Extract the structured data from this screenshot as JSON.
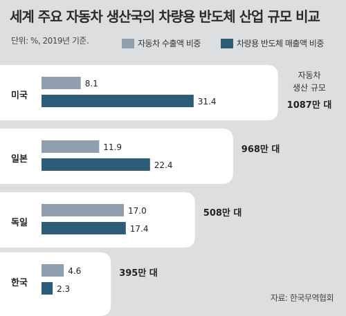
{
  "title": "세계 주요 자동차 생산국의 차량용 반도체 산업 규모 비교",
  "unit_note": "단위: %, 2019년 기준.",
  "source": "자료: 한국무역협회",
  "colors": {
    "export": "#8f9fae",
    "semiconductor": "#2d5c78",
    "background": "#dcdee0",
    "panel": "#ffffff"
  },
  "production_caption_lines": [
    "자동차",
    "생산 규모"
  ],
  "chart_data": {
    "type": "bar",
    "orientation": "horizontal",
    "categories": [
      "미국",
      "일본",
      "독일",
      "한국"
    ],
    "series": [
      {
        "name": "자동차 수출액 비중",
        "values": [
          8.1,
          11.9,
          17.0,
          4.6
        ],
        "labels": [
          "8.1",
          "11.9",
          "17.0",
          "4.6"
        ]
      },
      {
        "name": "차량용 반도체 매출액 비중",
        "values": [
          31.4,
          22.4,
          17.4,
          2.3
        ],
        "labels": [
          "31.4",
          "22.4",
          "17.4",
          "2.3"
        ]
      }
    ],
    "production_volume": {
      "values": [
        1087,
        968,
        508,
        395
      ],
      "labels": [
        "1087만 대",
        "968만 대",
        "508만 대",
        "395만 대"
      ]
    },
    "grid": false,
    "legend_position": "top"
  }
}
